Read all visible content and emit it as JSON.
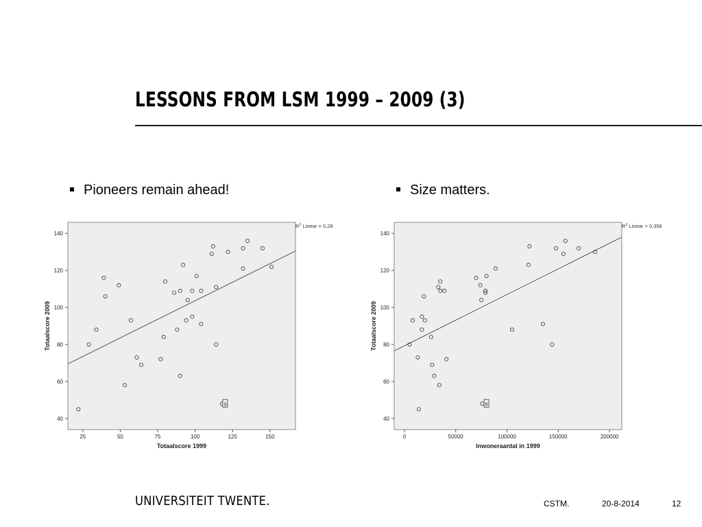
{
  "slide": {
    "title": "LESSONS FROM LSM 1999 – 2009 (3)",
    "bullets": [
      "Pioneers remain ahead!",
      "Size matters."
    ]
  },
  "footer": {
    "logo_text": "UNIVERSITEIT TWENTE.",
    "org": "CSTM.",
    "date": "20-8-2014",
    "page": "12"
  },
  "chart_data": [
    {
      "type": "scatter",
      "xlabel": "Totaalscore 1999",
      "ylabel": "Totaalscore 2009",
      "xlim": [
        15,
        167
      ],
      "ylim": [
        34,
        146
      ],
      "xticks": [
        25,
        50,
        75,
        100,
        125,
        150
      ],
      "yticks": [
        40,
        60,
        80,
        100,
        120,
        140
      ],
      "fit_label": "Linear = 0,28",
      "r2_prefix": "R",
      "r2_sup": "2",
      "fit_line": [
        [
          15,
          69.5
        ],
        [
          167,
          130.5
        ]
      ],
      "marked_point": {
        "x": 120,
        "y": 48,
        "label": "9"
      },
      "points": [
        [
          22,
          45
        ],
        [
          29,
          80
        ],
        [
          34,
          88
        ],
        [
          39,
          116
        ],
        [
          40,
          106
        ],
        [
          49,
          112
        ],
        [
          53,
          58
        ],
        [
          57,
          93
        ],
        [
          61,
          73
        ],
        [
          64,
          69
        ],
        [
          77,
          72
        ],
        [
          79,
          84
        ],
        [
          80,
          114
        ],
        [
          86,
          108
        ],
        [
          88,
          88
        ],
        [
          90,
          109
        ],
        [
          90,
          63
        ],
        [
          92,
          123
        ],
        [
          94,
          93
        ],
        [
          95,
          104
        ],
        [
          98,
          109
        ],
        [
          98,
          95
        ],
        [
          101,
          117
        ],
        [
          104,
          109
        ],
        [
          104,
          91
        ],
        [
          111,
          129
        ],
        [
          112,
          133
        ],
        [
          114,
          111
        ],
        [
          114,
          80
        ],
        [
          118,
          48
        ],
        [
          122,
          130
        ],
        [
          132,
          121
        ],
        [
          132,
          132
        ],
        [
          135,
          136
        ],
        [
          145,
          132
        ],
        [
          151,
          122
        ]
      ]
    },
    {
      "type": "scatter",
      "xlabel": "Inwoneraantal in 1999",
      "ylabel": "Totaalscore 2009",
      "xlim": [
        -10000,
        212000
      ],
      "ylim": [
        34,
        146
      ],
      "xticks": [
        0,
        50000,
        100000,
        150000,
        200000
      ],
      "yticks": [
        40,
        60,
        80,
        100,
        120,
        140
      ],
      "fit_label": "Linear = 0,356",
      "r2_prefix": "R",
      "r2_sup": "2",
      "fit_line": [
        [
          -10000,
          76.5
        ],
        [
          212000,
          138
        ]
      ],
      "marked_point": {
        "x": 80000,
        "y": 48,
        "label": "8"
      },
      "points": [
        [
          5000,
          80
        ],
        [
          8000,
          93
        ],
        [
          13000,
          73
        ],
        [
          14000,
          45
        ],
        [
          17000,
          95
        ],
        [
          17000,
          88
        ],
        [
          19000,
          106
        ],
        [
          20000,
          93
        ],
        [
          26000,
          84
        ],
        [
          27000,
          69
        ],
        [
          29000,
          63
        ],
        [
          33000,
          111
        ],
        [
          34000,
          58
        ],
        [
          35000,
          114
        ],
        [
          35000,
          109
        ],
        [
          39000,
          109
        ],
        [
          41000,
          72
        ],
        [
          70000,
          116
        ],
        [
          74000,
          112
        ],
        [
          75000,
          104
        ],
        [
          76000,
          48
        ],
        [
          79000,
          109
        ],
        [
          79000,
          108
        ],
        [
          80000,
          117
        ],
        [
          89000,
          121
        ],
        [
          105000,
          88
        ],
        [
          121000,
          123
        ],
        [
          122000,
          133
        ],
        [
          135000,
          91
        ],
        [
          144000,
          80
        ],
        [
          148000,
          132
        ],
        [
          155000,
          129
        ],
        [
          157000,
          136
        ],
        [
          170000,
          132
        ],
        [
          186000,
          130
        ]
      ]
    }
  ]
}
